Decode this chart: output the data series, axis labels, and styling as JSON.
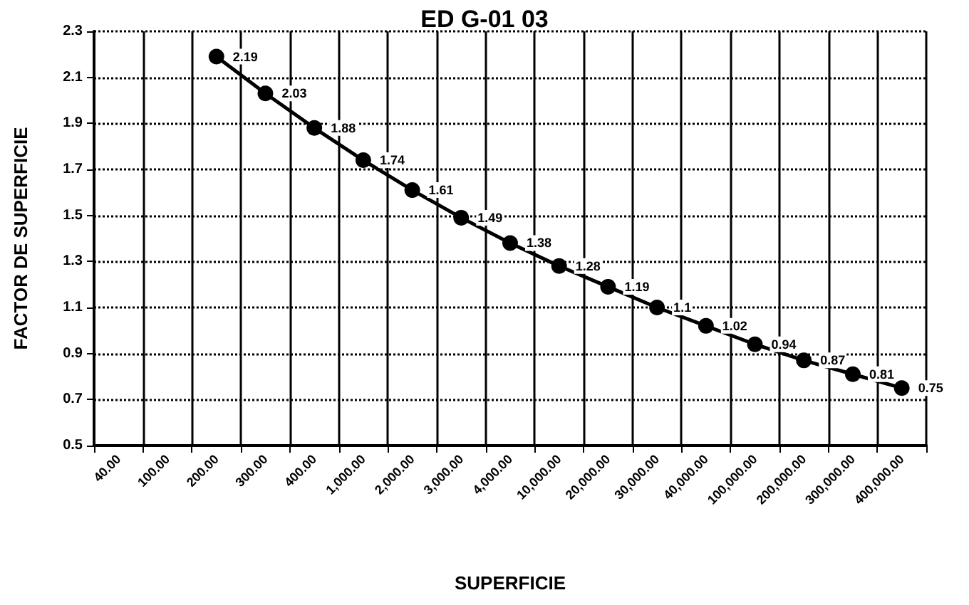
{
  "chart_data": {
    "type": "line",
    "title": "ED G-01 03",
    "xlabel": "SUPERFICIE",
    "ylabel": "FACTOR DE SUPERFICIE",
    "categories": [
      "40.00",
      "100.00",
      "200.00",
      "300.00",
      "400.00",
      "1,000.00",
      "2,000.00",
      "3,000.00",
      "4,000.00",
      "10,000.00",
      "20,000.00",
      "30,000.00",
      "40,000.00",
      "100,000.00",
      "200,000.00",
      "300,000.00",
      "400,000.00"
    ],
    "series": [
      {
        "color": "#000000",
        "values": [
          null,
          null,
          2.19,
          2.03,
          1.88,
          1.74,
          1.61,
          1.49,
          1.38,
          1.28,
          1.19,
          1.1,
          1.02,
          0.94,
          0.87,
          0.81,
          0.75
        ]
      }
    ],
    "ylim": [
      0.5,
      2.3
    ],
    "yticks": [
      0.5,
      0.7,
      0.9,
      1.1,
      1.3,
      1.5,
      1.7,
      1.9,
      2.1,
      2.3
    ],
    "grid": true,
    "marker": "circle",
    "line_style": "solid",
    "data_labels": true
  }
}
